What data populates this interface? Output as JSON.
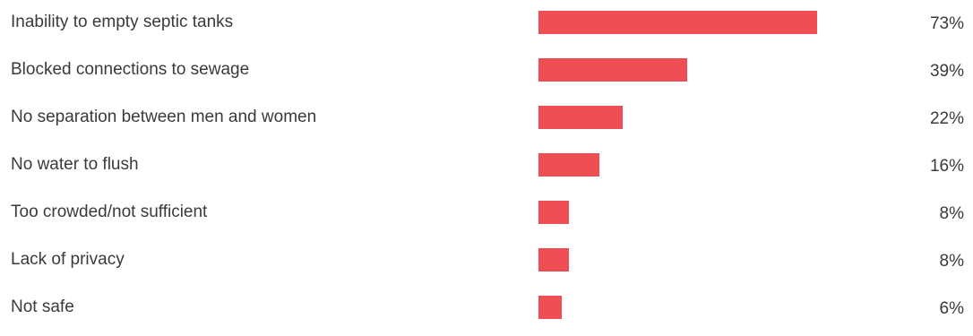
{
  "colors": {
    "bar": "#f04e55",
    "text": "#3a3a3a"
  },
  "chart_data": {
    "type": "bar",
    "orientation": "horizontal",
    "categories": [
      "Inability to empty septic tanks",
      "Blocked connections to sewage",
      "No separation between men and women",
      "No water to flush",
      "Too crowded/not sufficient",
      "Lack of privacy",
      "Not safe"
    ],
    "values": [
      73,
      39,
      22,
      16,
      8,
      8,
      6
    ],
    "value_labels": [
      "73%",
      "39%",
      "22%",
      "16%",
      "8%",
      "8%",
      "6%"
    ],
    "unit": "%",
    "xlim": [
      0,
      100
    ],
    "grid": false,
    "legend": "none",
    "title": "",
    "xlabel": "",
    "ylabel": ""
  }
}
